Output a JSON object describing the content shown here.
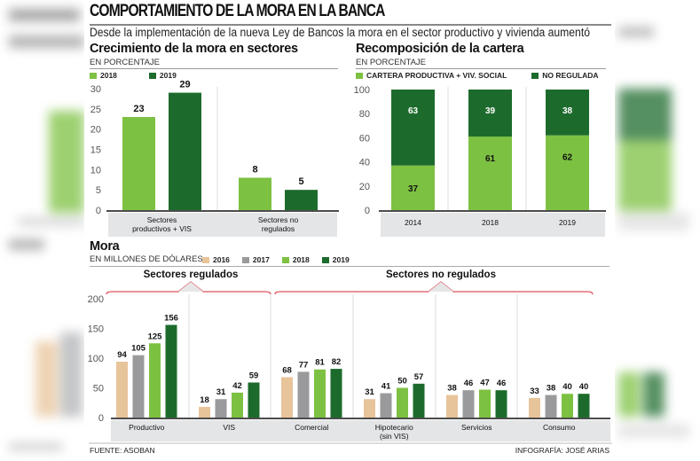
{
  "colors": {
    "y2016": "#e8c49a",
    "y2017": "#9a9a9c",
    "y2018": "#7dc142",
    "y2019": "#1d6b2c",
    "category_band": "#e4e5e7",
    "bracket": "#e0505a"
  },
  "header": {
    "title": "COMPORTAMIENTO DE LA MORA EN LA BANCA",
    "subtitle": "Desde la implementación de la nueva Ley de Bancos la mora en el sector productivo y vivienda aumentó"
  },
  "footer": {
    "source": "FUENTE: ASOBAN",
    "credit": "INFOGRAFÍA: JOSÉ ARIAS"
  },
  "chart_data": [
    {
      "type": "bar",
      "title": "Crecimiento de la mora en sectores",
      "subtitle": "EN PORCENTAJE",
      "categories": [
        "Sectores productivos + VIS",
        "Sectores no regulados"
      ],
      "category_lines": [
        [
          "Sectores",
          "productivos + VIS"
        ],
        [
          "Sectores no",
          "regulados"
        ]
      ],
      "series": [
        {
          "name": "2018",
          "color_key": "y2018",
          "values": [
            23,
            8
          ]
        },
        {
          "name": "2019",
          "color_key": "y2019",
          "values": [
            29,
            5
          ]
        }
      ],
      "ylim": [
        0,
        30
      ],
      "yticks": [
        0,
        5,
        10,
        15,
        20,
        25,
        30
      ],
      "legend": "top-left",
      "xlabel": "",
      "ylabel": ""
    },
    {
      "type": "bar",
      "stacked": true,
      "title": "Recomposición de la cartera",
      "subtitle": "EN PORCENTAJE",
      "categories": [
        "2014",
        "2018",
        "2019"
      ],
      "series": [
        {
          "name": "CARTERA PRODUCTIVA + VIV. SOCIAL",
          "color_key": "y2018",
          "values": [
            37,
            61,
            62
          ]
        },
        {
          "name": "NO REGULADA",
          "color_key": "y2019",
          "values": [
            63,
            39,
            38
          ]
        }
      ],
      "ylim": [
        0,
        100
      ],
      "yticks": [
        0,
        20,
        40,
        60,
        80,
        100
      ],
      "legend": "top-left",
      "xlabel": "",
      "ylabel": ""
    },
    {
      "type": "bar",
      "title": "Mora",
      "subtitle": "EN MILLONES DE DÓLARES",
      "categories": [
        "Productivo",
        "VIS",
        "Comercial",
        "Hipotecario (sin VIS)",
        "Servicios",
        "Consumo"
      ],
      "category_lines": [
        [
          "Productivo"
        ],
        [
          "VIS"
        ],
        [
          "Comercial"
        ],
        [
          "Hipotecario",
          "(sin VIS)"
        ],
        [
          "Servicios"
        ],
        [
          "Consumo"
        ]
      ],
      "series": [
        {
          "name": "2016",
          "color_key": "y2016",
          "values": [
            94,
            18,
            68,
            31,
            38,
            33
          ]
        },
        {
          "name": "2017",
          "color_key": "y2017",
          "values": [
            105,
            31,
            77,
            41,
            46,
            38
          ]
        },
        {
          "name": "2018",
          "color_key": "y2018",
          "values": [
            125,
            42,
            81,
            50,
            47,
            40
          ]
        },
        {
          "name": "2019",
          "color_key": "y2019",
          "values": [
            156,
            59,
            82,
            57,
            46,
            40
          ]
        }
      ],
      "groups": [
        {
          "label": "Sectores regulados",
          "categories": [
            "Productivo",
            "VIS"
          ]
        },
        {
          "label": "Sectores no regulados",
          "categories": [
            "Comercial",
            "Hipotecario (sin VIS)",
            "Servicios",
            "Consumo"
          ]
        }
      ],
      "ylim": [
        0,
        200
      ],
      "yticks": [
        0,
        50,
        100,
        150,
        200
      ],
      "legend": "top-left",
      "xlabel": "",
      "ylabel": ""
    }
  ]
}
